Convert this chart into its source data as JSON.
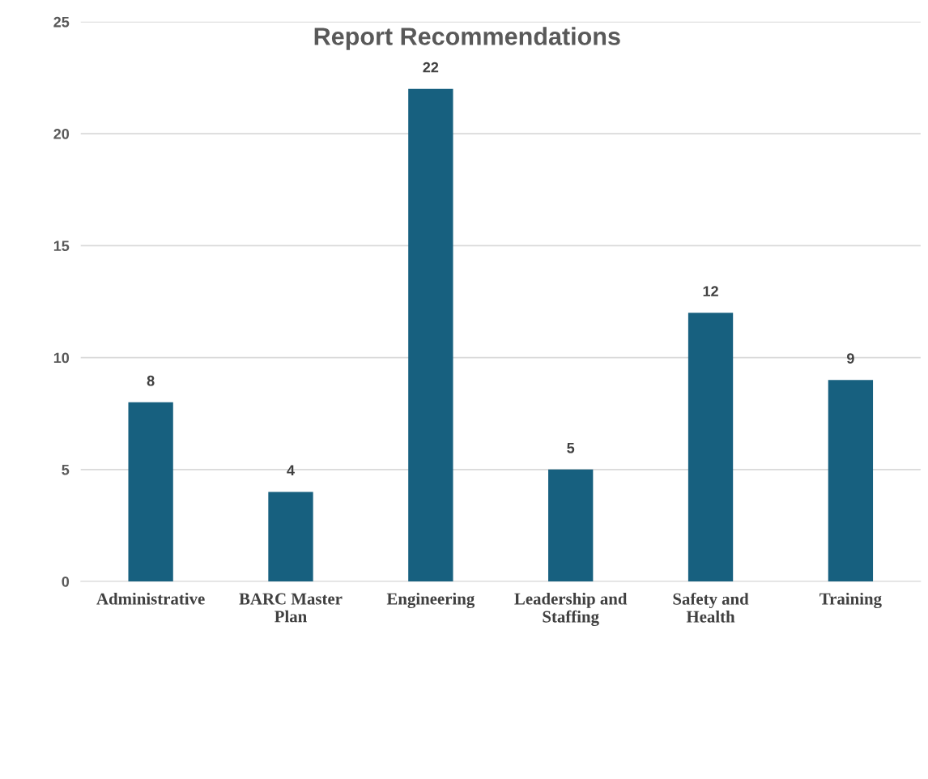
{
  "chart_data": {
    "type": "bar",
    "title": "Report Recommendations",
    "categories": [
      "Administrative",
      "BARC Master\nPlan",
      "Engineering",
      "Leadership and\nStaffing",
      "Safety and\nHealth",
      "Training"
    ],
    "values": [
      8,
      4,
      22,
      5,
      12,
      9
    ],
    "color": "#17607f",
    "ylim": [
      0,
      25
    ],
    "yticks": [
      0,
      5,
      10,
      15,
      20,
      25
    ],
    "grid": "y",
    "data_labels": true
  }
}
